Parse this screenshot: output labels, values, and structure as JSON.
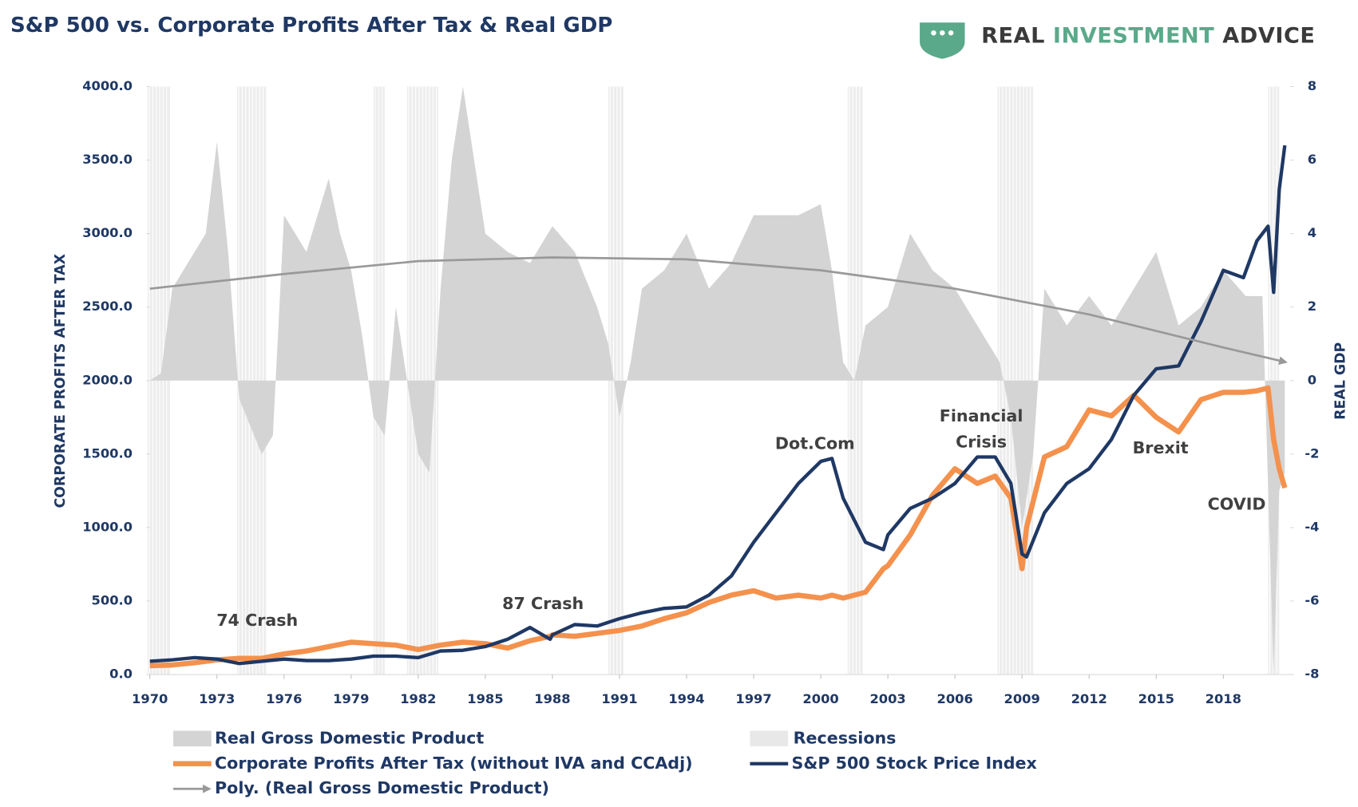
{
  "chart_data": {
    "type": "line",
    "title": "S&P 500 vs. Corporate Profits After Tax & Real GDP",
    "logo": [
      "REAL",
      "INVESTMENT",
      "ADVICE"
    ],
    "ylabel": "CORPORATE PROFITS AFTER TAX",
    "y2label": "REAL GDP",
    "xlim": [
      1970,
      2021
    ],
    "xticks": [
      1970,
      1973,
      1976,
      1979,
      1982,
      1985,
      1988,
      1991,
      1994,
      1997,
      2000,
      2003,
      2006,
      2009,
      2012,
      2015,
      2018
    ],
    "ylim": [
      0,
      4000
    ],
    "yticks": [
      {
        "value": 0,
        "label": "0.0"
      },
      {
        "value": 500,
        "label": "500.0"
      },
      {
        "value": 1000,
        "label": "1000.0"
      },
      {
        "value": 1500,
        "label": "1500.0"
      },
      {
        "value": 2000,
        "label": "2000.0"
      },
      {
        "value": 2500,
        "label": "2500.0"
      },
      {
        "value": 3000,
        "label": "3000.0"
      },
      {
        "value": 3500,
        "label": "3500.0"
      },
      {
        "value": 4000,
        "label": "4000.0"
      }
    ],
    "y2lim": [
      -8,
      8
    ],
    "y2ticks": [
      8,
      6,
      4,
      2,
      0,
      -2,
      -4,
      -6,
      -8
    ],
    "recessions": {
      "name": "Recessions",
      "color": "#e8e8e8",
      "periods": [
        [
          1969.9,
          1970.9
        ],
        [
          1973.9,
          1975.2
        ],
        [
          1980.0,
          1980.5
        ],
        [
          1981.5,
          1982.9
        ],
        [
          1990.5,
          1991.2
        ],
        [
          2001.2,
          2001.9
        ],
        [
          2007.9,
          2009.5
        ],
        [
          2020.0,
          2020.5
        ]
      ]
    },
    "series": [
      {
        "name": "Real Gross Domestic Product",
        "style": "area",
        "axis": "y2",
        "color": "#d4d4d4",
        "x": [
          1970,
          1970.5,
          1971,
          1972,
          1972.5,
          1973,
          1973.5,
          1974,
          1975,
          1975.5,
          1976,
          1977,
          1978,
          1978.5,
          1979,
          1979.5,
          1980,
          1980.5,
          1981,
          1981.5,
          1982,
          1982.5,
          1983,
          1983.5,
          1984,
          1985,
          1986,
          1987,
          1988,
          1989,
          1990,
          1990.5,
          1991,
          1991.5,
          1992,
          1993,
          1994,
          1995,
          1996,
          1997,
          1998,
          1999,
          2000,
          2000.5,
          2001,
          2001.5,
          2002,
          2003,
          2004,
          2005,
          2006,
          2007,
          2008,
          2008.5,
          2009,
          2009.5,
          2010,
          2011,
          2012,
          2013,
          2014,
          2015,
          2016,
          2017,
          2018,
          2019,
          2019.75,
          2020.25,
          2020.5,
          2020.75
        ],
        "values": [
          0,
          0.2,
          2.5,
          3.5,
          4,
          6.5,
          3.5,
          -0.5,
          -2,
          -1.5,
          4.5,
          3.5,
          5.5,
          4,
          3,
          1.2,
          -1,
          -1.5,
          2,
          0,
          -2,
          -2.5,
          2.5,
          6,
          8,
          4,
          3.5,
          3.2,
          4.2,
          3.5,
          2,
          1,
          -1,
          0.5,
          2.5,
          3,
          4,
          2.5,
          3.2,
          4.5,
          4.5,
          4.5,
          4.8,
          3,
          0.5,
          0,
          1.5,
          2,
          4,
          3,
          2.5,
          1.5,
          0.5,
          -1,
          -4,
          -2,
          2.5,
          1.5,
          2.3,
          1.5,
          2.5,
          3.5,
          1.5,
          2,
          3,
          2.3,
          2.3,
          -8,
          -3,
          -2.5
        ]
      },
      {
        "name": "Corporate Profits After Tax (without IVA and CCAdj)",
        "style": "line",
        "color": "#f4914d",
        "width": 6,
        "x": [
          1970,
          1971,
          1972,
          1973,
          1974,
          1975,
          1976,
          1977,
          1978,
          1979,
          1980,
          1981,
          1982,
          1983,
          1984,
          1985,
          1986,
          1987,
          1987.9,
          1988,
          1989,
          1990,
          1991,
          1992,
          1993,
          1994,
          1995,
          1996,
          1997,
          1998,
          1999,
          2000,
          2000.5,
          2001,
          2002,
          2002.8,
          2003,
          2004,
          2005,
          2006,
          2007,
          2007.8,
          2008.5,
          2009,
          2009.2,
          2010,
          2011,
          2012,
          2013,
          2014,
          2015,
          2016,
          2017,
          2018,
          2018.9,
          2019.5,
          2020,
          2020.25,
          2020.5,
          2020.75
        ],
        "values": [
          60,
          65,
          80,
          100,
          110,
          110,
          140,
          160,
          190,
          220,
          210,
          200,
          170,
          200,
          220,
          210,
          180,
          230,
          260,
          270,
          260,
          280,
          300,
          330,
          380,
          420,
          490,
          540,
          570,
          520,
          540,
          520,
          540,
          520,
          560,
          720,
          740,
          950,
          1220,
          1400,
          1300,
          1350,
          1200,
          720,
          1000,
          1480,
          1550,
          1800,
          1760,
          1900,
          1750,
          1650,
          1870,
          1920,
          1920,
          1930,
          1950,
          1600,
          1400,
          1270
        ]
      },
      {
        "name": "S&P 500 Stock Price Index",
        "style": "line",
        "color": "#1f3864",
        "width": 4,
        "x": [
          1970,
          1971,
          1972,
          1973,
          1974,
          1975,
          1976,
          1977,
          1978,
          1979,
          1980,
          1981,
          1982,
          1983,
          1984,
          1985,
          1986,
          1987,
          1987.9,
          1988,
          1989,
          1990,
          1991,
          1992,
          1993,
          1994,
          1995,
          1996,
          1997,
          1998,
          1999,
          2000,
          2000.5,
          2001,
          2002,
          2002.8,
          2003,
          2004,
          2005,
          2006,
          2007,
          2007.8,
          2008.5,
          2009,
          2009.2,
          2010,
          2011,
          2012,
          2013,
          2014,
          2015,
          2016,
          2017,
          2018,
          2018.9,
          2019.5,
          2020,
          2020.25,
          2020.5,
          2020.75
        ],
        "values": [
          90,
          100,
          115,
          105,
          75,
          90,
          105,
          95,
          95,
          105,
          125,
          125,
          115,
          160,
          165,
          190,
          240,
          320,
          240,
          270,
          340,
          330,
          380,
          420,
          450,
          460,
          540,
          670,
          900,
          1100,
          1300,
          1450,
          1470,
          1200,
          900,
          850,
          950,
          1130,
          1200,
          1300,
          1480,
          1480,
          1300,
          820,
          800,
          1100,
          1300,
          1400,
          1600,
          1900,
          2080,
          2100,
          2400,
          2750,
          2700,
          2950,
          3050,
          2600,
          3300,
          3600
        ]
      },
      {
        "name": "Poly. (Real Gross Domestic Product)",
        "style": "trend",
        "axis": "y2",
        "color": "#999999",
        "x": [
          1970,
          1976,
          1982,
          1988,
          1994,
          2000,
          2006,
          2012,
          2018,
          2020.8
        ],
        "values": [
          2.5,
          2.9,
          3.25,
          3.35,
          3.3,
          3.0,
          2.5,
          1.8,
          0.9,
          0.5
        ]
      }
    ],
    "annotations": [
      [
        "74 Crash"
      ],
      [
        "87 Crash"
      ],
      [
        "Dot.Com"
      ],
      [
        "Financial",
        "Crisis"
      ],
      [
        "Brexit"
      ],
      [
        "COVID"
      ]
    ]
  }
}
